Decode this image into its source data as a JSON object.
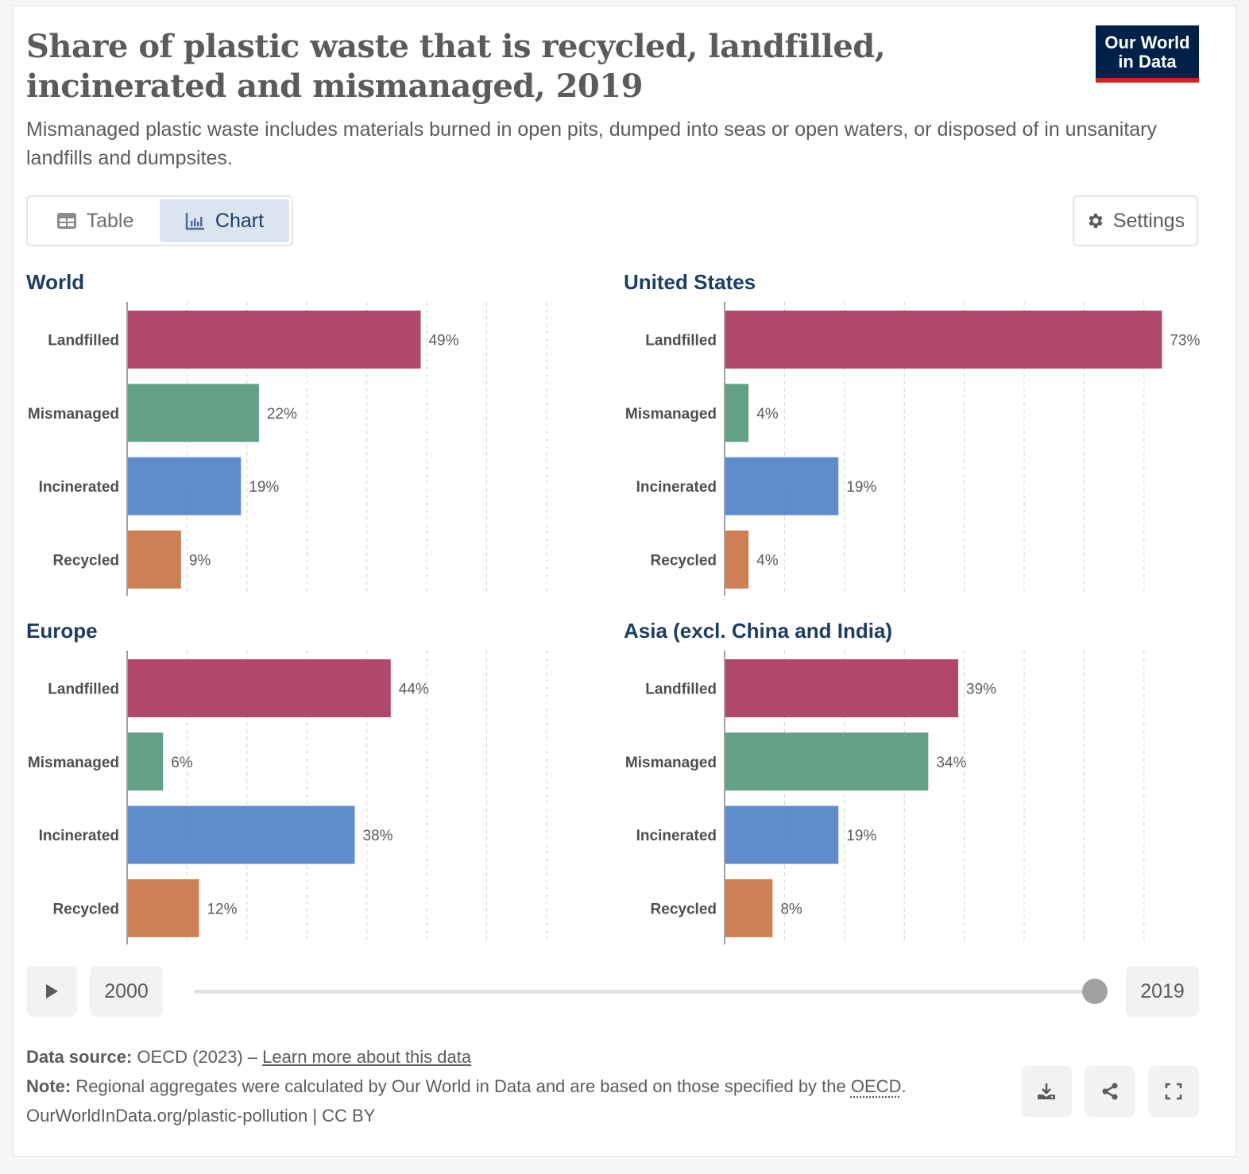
{
  "header": {
    "title": "Share of plastic waste that is recycled, landfilled, incinerated and mismanaged, 2019",
    "subtitle": "Mismanaged plastic waste includes materials burned in open pits, dumped into seas or open waters, or disposed of in unsanitary landfills and dumpsites.",
    "logo_line1": "Our World",
    "logo_line2": "in Data",
    "logo_bg": "#002147",
    "logo_accent": "#ce261e"
  },
  "toolbar": {
    "table_label": "Table",
    "chart_label": "Chart",
    "active_tab": "Chart",
    "settings_label": "Settings"
  },
  "chart_data": {
    "type": "bar",
    "orientation": "horizontal",
    "unit": "%",
    "title": "Share of plastic waste that is recycled, landfilled, incinerated and mismanaged, 2019",
    "xlabel": "",
    "ylabel": "",
    "xlim": [
      0,
      70
    ],
    "grid": true,
    "grid_step": 10,
    "categories": [
      "Landfilled",
      "Mismanaged",
      "Incinerated",
      "Recycled"
    ],
    "colors": {
      "Landfilled": "#ad4168",
      "Mismanaged": "#5d9e82",
      "Incinerated": "#5988cb",
      "Recycled": "#cc7b4d"
    },
    "panels": [
      {
        "name": "World",
        "values": [
          49,
          22,
          19,
          9
        ],
        "labels": [
          "49%",
          "22%",
          "19%",
          "9%"
        ]
      },
      {
        "name": "United States",
        "values": [
          73,
          4,
          19,
          4
        ],
        "labels": [
          "73%",
          "4%",
          "19%",
          "4%"
        ]
      },
      {
        "name": "Europe",
        "values": [
          44,
          6,
          38,
          12
        ],
        "labels": [
          "44%",
          "6%",
          "38%",
          "12%"
        ]
      },
      {
        "name": "Asia (excl. China and India)",
        "values": [
          39,
          34,
          19,
          8
        ],
        "labels": [
          "39%",
          "34%",
          "19%",
          "8%"
        ]
      }
    ]
  },
  "timeline": {
    "play_icon": "play-icon",
    "start_year": "2000",
    "end_year": "2019",
    "selected_year": "2019",
    "position_fraction": 1.0
  },
  "footer": {
    "source_label": "Data source:",
    "source_text": "OECD (2023) –",
    "learn_more": "Learn more about this data",
    "note_label": "Note:",
    "note_text": "Regional aggregates were calculated by Our World in Data and are based on those specified by the",
    "note_link": "OECD",
    "note_end": ".",
    "url_text": "OurWorldInData.org/plastic-pollution | CC BY"
  },
  "actions": {
    "download_icon": "download-icon",
    "share_icon": "share-icon",
    "fullscreen_icon": "fullscreen-icon"
  }
}
